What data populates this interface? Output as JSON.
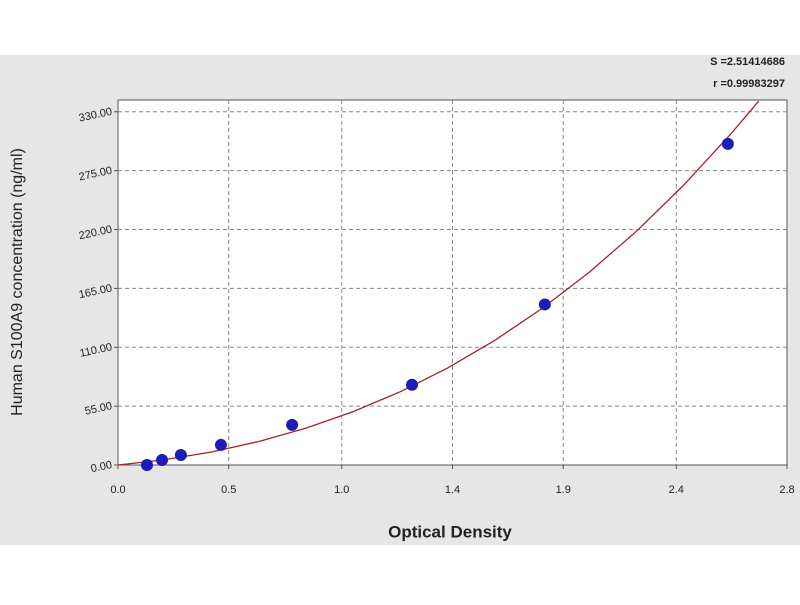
{
  "chart_data": {
    "type": "scatter",
    "x_label": "Optical Density",
    "y_label": "Human S100A9 concentration (ng/ml)",
    "annotations": [
      "S =2.51414686",
      "r =0.99983297"
    ],
    "xlim": [
      0,
      2.84
    ],
    "ylim": [
      0,
      341
    ],
    "xticks": [
      {
        "value": 0,
        "label": "0.0"
      },
      {
        "value": 0.47,
        "label": "0.5"
      },
      {
        "value": 0.95,
        "label": "1.0"
      },
      {
        "value": 1.42,
        "label": "1.4"
      },
      {
        "value": 1.89,
        "label": "1.9"
      },
      {
        "value": 2.37,
        "label": "2.4"
      },
      {
        "value": 2.84,
        "label": "2.8"
      }
    ],
    "yticks": [
      {
        "value": 0,
        "label": "0.00"
      },
      {
        "value": 55,
        "label": "55.00"
      },
      {
        "value": 110,
        "label": "110.00"
      },
      {
        "value": 165,
        "label": "165.00"
      },
      {
        "value": 220,
        "label": "220.00"
      },
      {
        "value": 275,
        "label": "275.00"
      },
      {
        "value": 330,
        "label": "330.00"
      }
    ],
    "grid": true,
    "series": [
      {
        "color": "#1c1cb8",
        "x": [
          0.123,
          0.187,
          0.267,
          0.437,
          0.739,
          1.248,
          1.812,
          2.589
        ],
        "values": [
          0,
          4.69,
          9.38,
          18.75,
          37.5,
          75,
          150,
          300
        ]
      },
      {
        "color": "#a3222e",
        "line": true,
        "x": [
          0,
          0.2,
          0.4,
          0.6,
          0.8,
          1.0,
          1.2,
          1.4,
          1.6,
          1.8,
          2.0,
          2.2,
          2.4,
          2.6,
          2.72
        ],
        "values": [
          0,
          5.0,
          12.3,
          22.1,
          34.6,
          50,
          68.6,
          90.7,
          116.5,
          146.2,
          180,
          218.2,
          261.1,
          308.9,
          340
        ]
      }
    ]
  }
}
